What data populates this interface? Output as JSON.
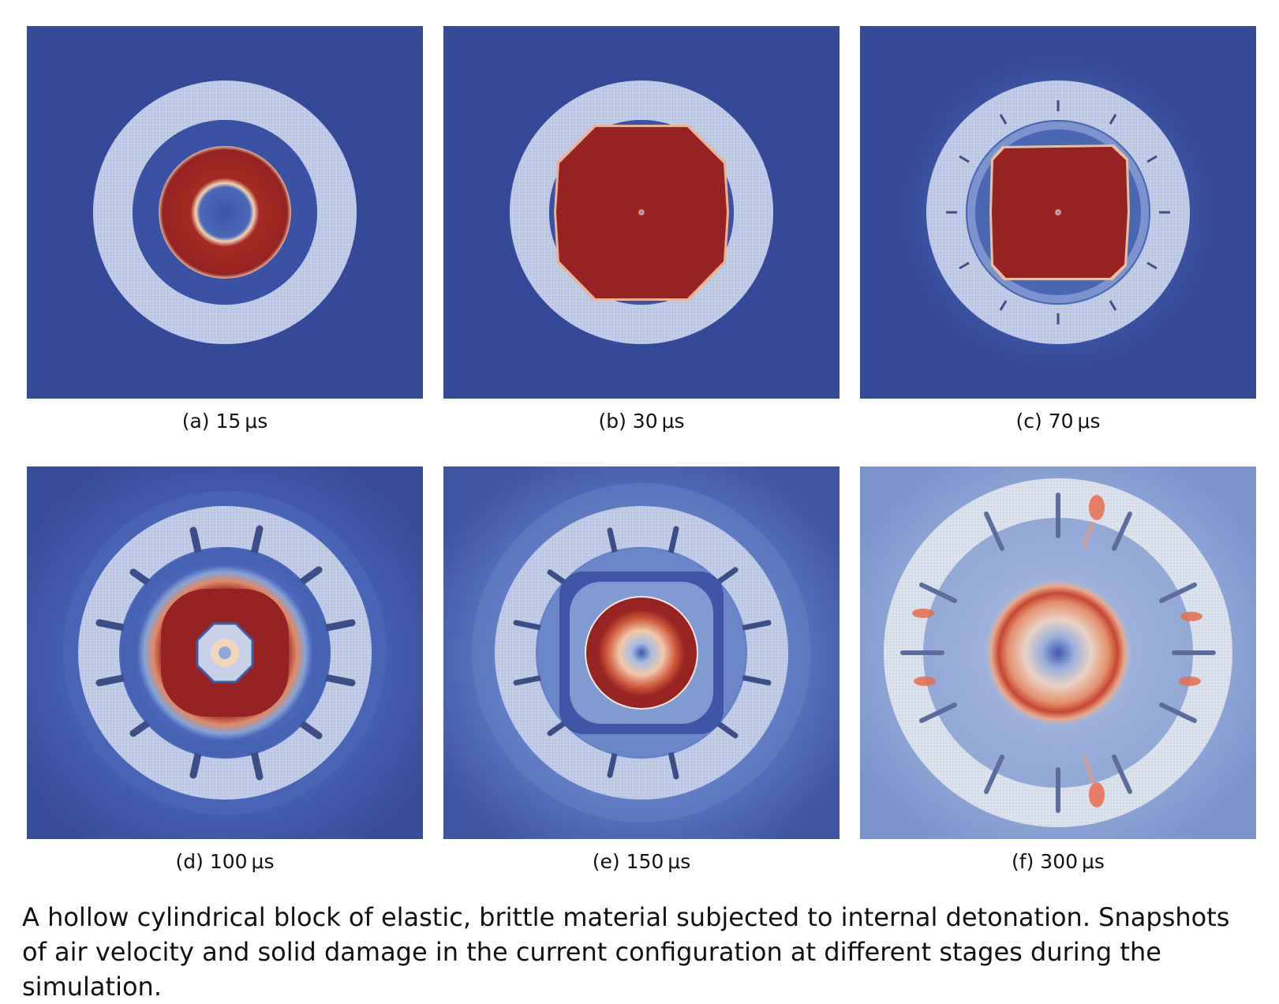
{
  "figure": {
    "panels": [
      {
        "id": "a",
        "label": "(a) 15 μs"
      },
      {
        "id": "b",
        "label": "(b) 30 μs"
      },
      {
        "id": "c",
        "label": "(c) 70 μs"
      },
      {
        "id": "d",
        "label": "(d) 100 μs"
      },
      {
        "id": "e",
        "label": "(e) 150 μs"
      },
      {
        "id": "f",
        "label": "(f) 300 μs"
      }
    ],
    "caption": "A hollow cylindrical block of elastic, brittle material subjected to internal detonation. Snapshots of air velocity and solid damage in the current configuration at different stages during the simulation."
  },
  "colors": {
    "background_air": "#354a97",
    "hot": "#962322",
    "solid_ring": "#b7c5e3",
    "crack": "#3c4e86"
  }
}
